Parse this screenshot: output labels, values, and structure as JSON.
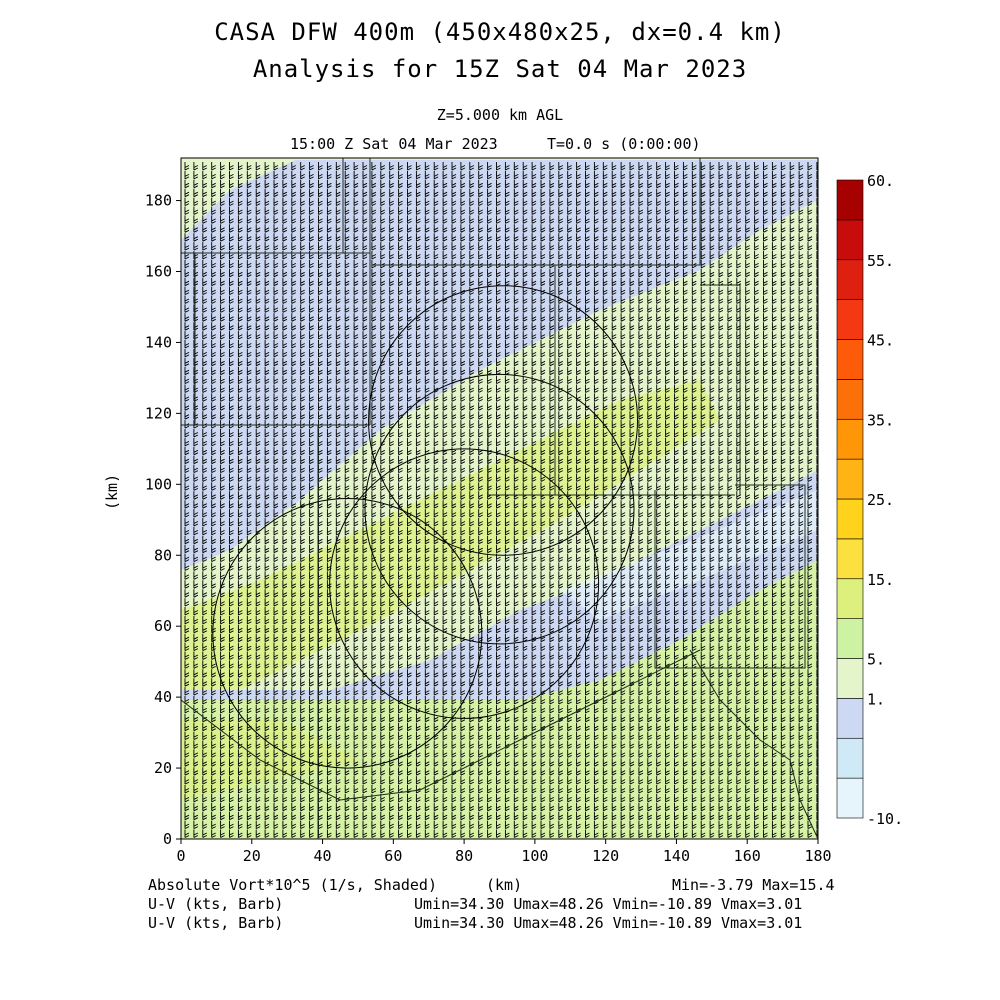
{
  "header": {
    "title_line1": "CASA DFW 400m (450x480x25, dx=0.4 km)",
    "title_line2": "Analysis for 15Z Sat 04 Mar 2023",
    "level": "Z=5.000 km AGL",
    "valid_time": "15:00 Z Sat 04 Mar 2023",
    "elapsed": "T=0.0 s (0:00:00)"
  },
  "footer": {
    "field_label": "Absolute Vort*10^5 (1/s, Shaded)",
    "xunit": "(km)",
    "minmax": "Min=-3.79 Max=15.4",
    "barb_label_1": "U-V (kts, Barb)",
    "barb_stats_1": "Umin=34.30 Umax=48.26 Vmin=-10.89 Vmax=3.01",
    "barb_label_2": "U-V (kts, Barb)",
    "barb_stats_2": "Umin=34.30 Umax=48.26 Vmin=-10.89 Vmax=3.01"
  },
  "chart_data": {
    "type": "heatmap",
    "xlabel": "(km)",
    "ylabel": "(km)",
    "xlim": [
      0,
      180
    ],
    "ylim": [
      0,
      192
    ],
    "x_ticks": [
      "0",
      "20",
      "40",
      "60",
      "80",
      "100",
      "120",
      "140",
      "160",
      "180"
    ],
    "y_ticks": [
      "0",
      "20",
      "40",
      "60",
      "80",
      "100",
      "120",
      "140",
      "160",
      "180"
    ],
    "colorbar": {
      "labels": [
        "-10.",
        "1.",
        "5.",
        "15.",
        "25.",
        "35.",
        "45.",
        "55.",
        "60."
      ],
      "colors": [
        "#e6f5fb",
        "#cfe9f6",
        "#cdd8f2",
        "#e4f5cc",
        "#ccf2a2",
        "#ddf07e",
        "#fbe040",
        "#ffd21c",
        "#ffb314",
        "#fe9608",
        "#fb7008",
        "#fd5a0a",
        "#f43912",
        "#de2010",
        "#c80c0c",
        "#a60000"
      ]
    },
    "vorticity_range": {
      "min": -3.79,
      "max": 15.4
    },
    "wind_barbs": {
      "u_min": 34.3,
      "u_max": 48.26,
      "v_min": -10.89,
      "v_max": 3.01
    },
    "radar_rings_km": [
      {
        "center": [
          91,
          118
        ],
        "radius": 38
      },
      {
        "center": [
          80,
          72
        ],
        "radius": 38
      },
      {
        "center": [
          47,
          58
        ],
        "radius": 38
      },
      {
        "center": [
          90,
          93
        ],
        "radius": 38
      }
    ]
  }
}
